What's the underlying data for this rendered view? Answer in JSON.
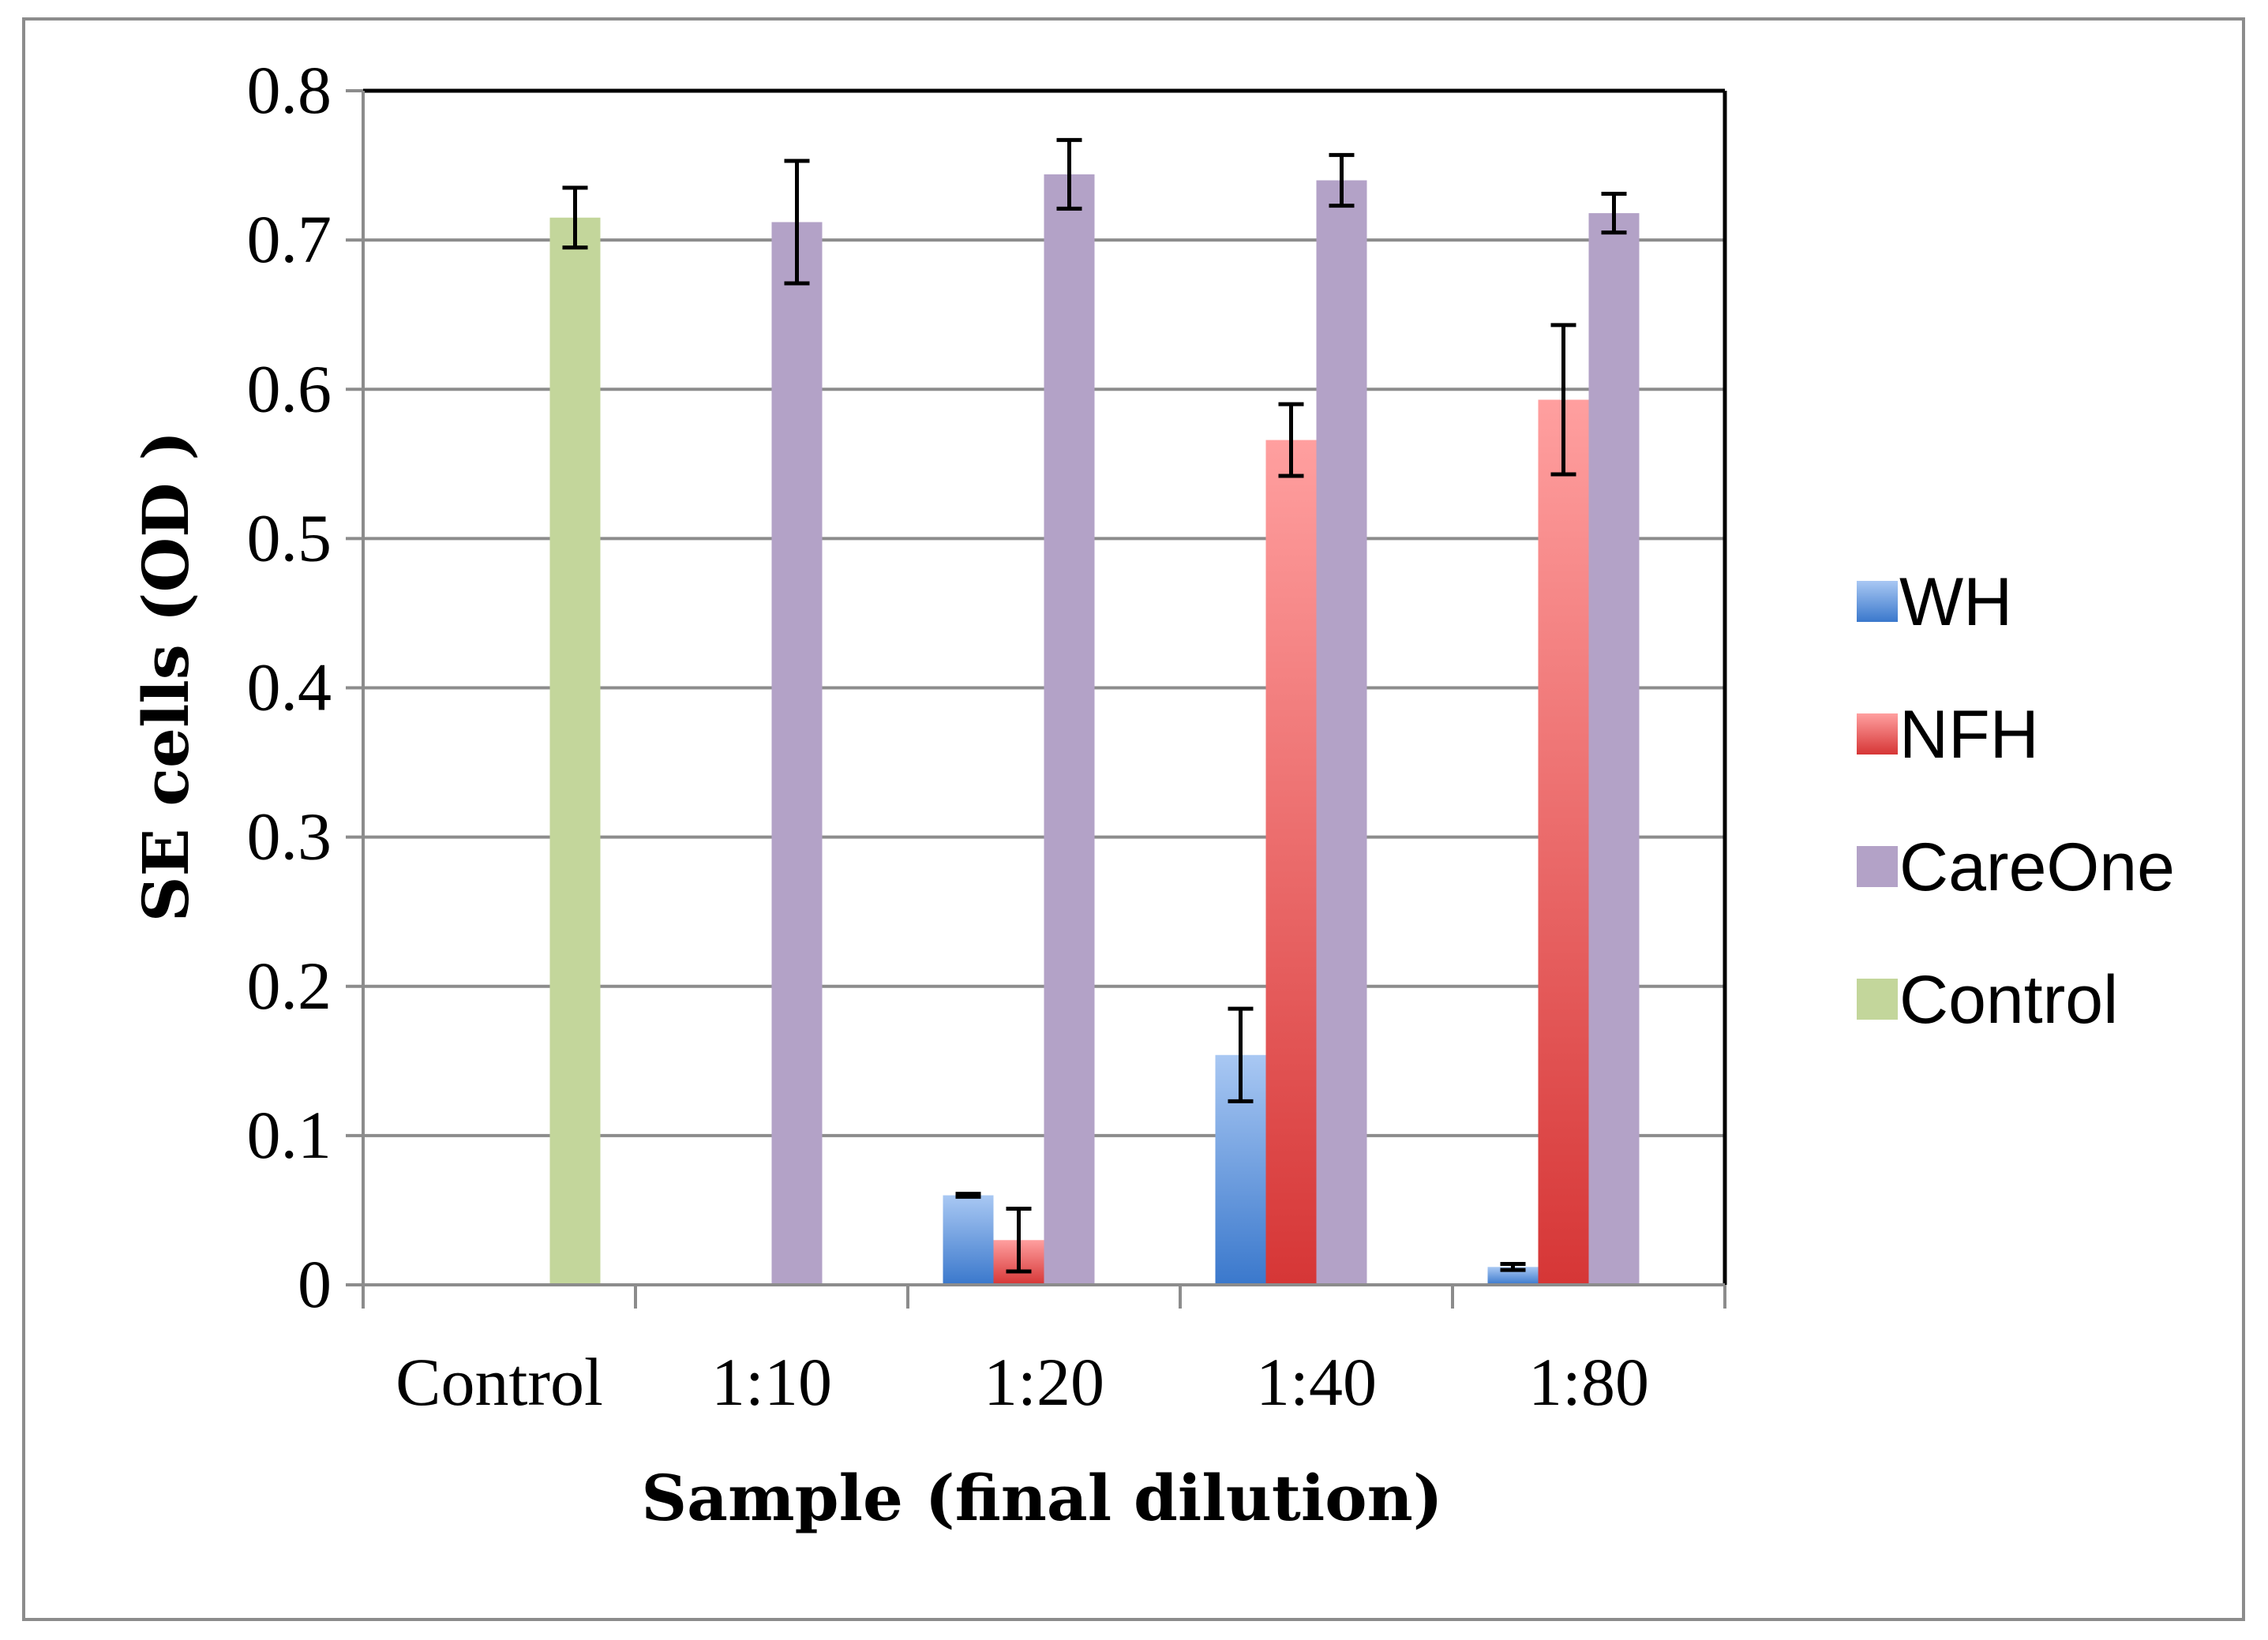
{
  "chart_data": {
    "type": "bar",
    "title": "",
    "xlabel": "Sample (final dilution)",
    "ylabel": "SE cells (OD )",
    "ylim": [
      0,
      0.8
    ],
    "ytick_step": 0.1,
    "ytick_labels": [
      "0",
      "0.1",
      "0.2",
      "0.3",
      "0.4",
      "0.5",
      "0.6",
      "0.7",
      "0.8"
    ],
    "grid": true,
    "legend_position": "right",
    "categories": [
      "Control",
      "1:10",
      "1:20",
      "1:40",
      "1:80"
    ],
    "series": [
      {
        "name": "WH",
        "color": "#4a86d6",
        "values": [
          null,
          null,
          0.06,
          0.154,
          0.012
        ],
        "errors": [
          null,
          null,
          0.001,
          0.031,
          0.002
        ]
      },
      {
        "name": "NFH",
        "color": "#d94040",
        "values": [
          null,
          null,
          0.03,
          0.566,
          0.593
        ],
        "errors": [
          null,
          null,
          0.021,
          0.024,
          0.05
        ]
      },
      {
        "name": "CareOne",
        "color": "#b3a2c7",
        "values": [
          null,
          0.712,
          0.744,
          0.74,
          0.718
        ],
        "errors": [
          null,
          0.041,
          0.023,
          0.017,
          0.013
        ]
      },
      {
        "name": "Control",
        "color": "#c3d69b",
        "values": [
          0.715,
          null,
          null,
          null,
          null
        ],
        "errors": [
          0.02,
          null,
          null,
          null,
          null
        ]
      }
    ]
  }
}
